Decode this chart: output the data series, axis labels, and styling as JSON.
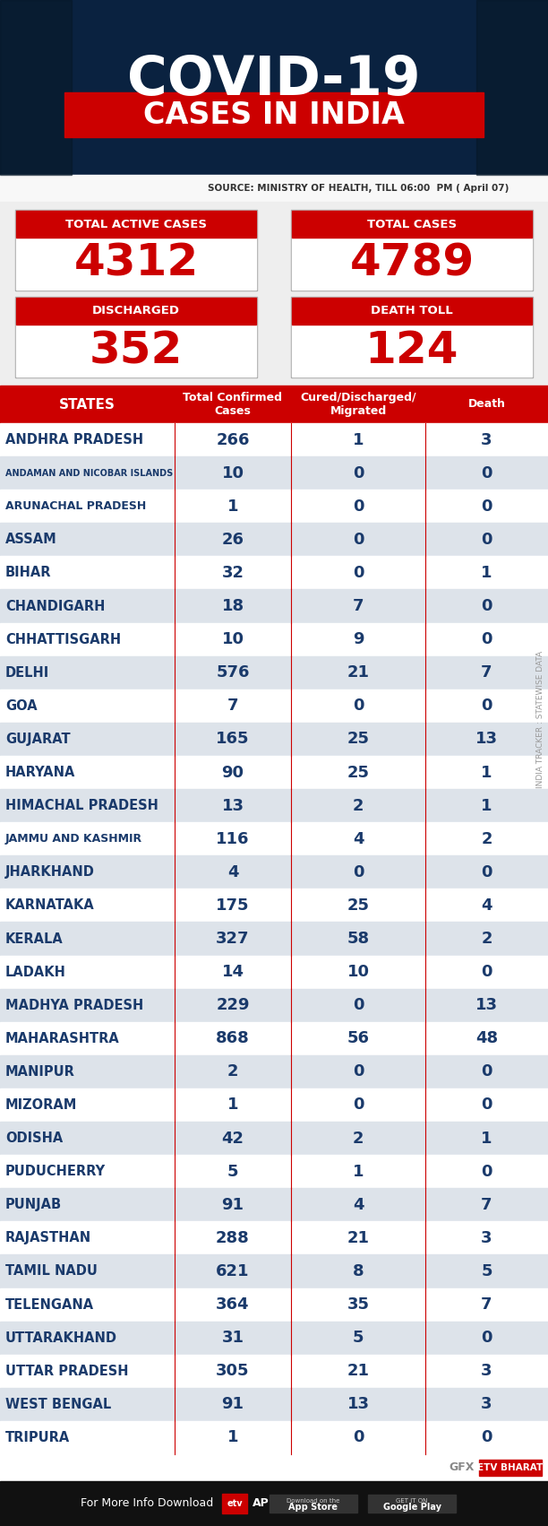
{
  "title_line1": "COVID-19",
  "title_line2": "CASES IN INDIA",
  "source_text": "SOURCE: MINISTRY OF HEALTH, TILL 06:00  PM ( April 07)",
  "stats": [
    {
      "label": "TOTAL ACTIVE CASES",
      "value": "4312"
    },
    {
      "label": "TOTAL CASES",
      "value": "4789"
    },
    {
      "label": "DISCHARGED",
      "value": "352"
    },
    {
      "label": "DEATH TOLL",
      "value": "124"
    }
  ],
  "header": [
    "STATES",
    "Total Confirmed\nCases",
    "Cured/Discharged/\nMigrated",
    "Death"
  ],
  "rows": [
    [
      "ANDHRA PRADESH",
      "266",
      "1",
      "3",
      "large"
    ],
    [
      "ANDAMAN AND NICOBAR ISLANDS",
      "10",
      "0",
      "0",
      "small"
    ],
    [
      "ARUNACHAL PRADESH",
      "1",
      "0",
      "0",
      "large"
    ],
    [
      "ASSAM",
      "26",
      "0",
      "0",
      "large"
    ],
    [
      "BIHAR",
      "32",
      "0",
      "1",
      "large"
    ],
    [
      "CHANDIGARH",
      "18",
      "7",
      "0",
      "large"
    ],
    [
      "CHHATTISGARH",
      "10",
      "9",
      "0",
      "large"
    ],
    [
      "DELHI",
      "576",
      "21",
      "7",
      "large"
    ],
    [
      "GOA",
      "7",
      "0",
      "0",
      "large"
    ],
    [
      "GUJARAT",
      "165",
      "25",
      "13",
      "large"
    ],
    [
      "HARYANA",
      "90",
      "25",
      "1",
      "large"
    ],
    [
      "HIMACHAL PRADESH",
      "13",
      "2",
      "1",
      "large"
    ],
    [
      "JAMMU AND KASHMIR",
      "116",
      "4",
      "2",
      "large"
    ],
    [
      "JHARKHAND",
      "4",
      "0",
      "0",
      "large"
    ],
    [
      "KARNATAKA",
      "175",
      "25",
      "4",
      "large"
    ],
    [
      "KERALA",
      "327",
      "58",
      "2",
      "large"
    ],
    [
      "LADAKH",
      "14",
      "10",
      "0",
      "large"
    ],
    [
      "MADHYA PRADESH",
      "229",
      "0",
      "13",
      "large"
    ],
    [
      "MAHARASHTRA",
      "868",
      "56",
      "48",
      "large"
    ],
    [
      "MANIPUR",
      "2",
      "0",
      "0",
      "large"
    ],
    [
      "MIZORAM",
      "1",
      "0",
      "0",
      "large"
    ],
    [
      "ODISHA",
      "42",
      "2",
      "1",
      "large"
    ],
    [
      "PUDUCHERRY",
      "5",
      "1",
      "0",
      "large"
    ],
    [
      "PUNJAB",
      "91",
      "4",
      "7",
      "large"
    ],
    [
      "RAJASTHAN",
      "288",
      "21",
      "3",
      "large"
    ],
    [
      "TAMIL NADU",
      "621",
      "8",
      "5",
      "large"
    ],
    [
      "TELENGANA",
      "364",
      "35",
      "7",
      "large"
    ],
    [
      "UTTARAKHAND",
      "31",
      "5",
      "0",
      "large"
    ],
    [
      "UTTAR PRADESH",
      "305",
      "21",
      "3",
      "large"
    ],
    [
      "WEST BENGAL",
      "91",
      "13",
      "3",
      "large"
    ],
    [
      "TRIPURA",
      "1",
      "0",
      "0",
      "large"
    ]
  ],
  "header_bg": "#cc0000",
  "row_bg_odd": "#dde3ea",
  "row_bg_even": "#ffffff",
  "row_text_color": "#1a3a6b",
  "title_bg": "#0a2240",
  "red_banner_bg": "#cc0000",
  "stat_box_bg": "#ffffff",
  "stat_label_bg": "#cc0000",
  "stat_value_color": "#cc0000",
  "footer_bg": "#111111",
  "footer_text_color": "#ffffff",
  "divider_color": "#cc0000",
  "source_area_bg": "#ffffff",
  "gfx_area_bg": "#ffffff",
  "watermark_color": "#aaaaaa"
}
